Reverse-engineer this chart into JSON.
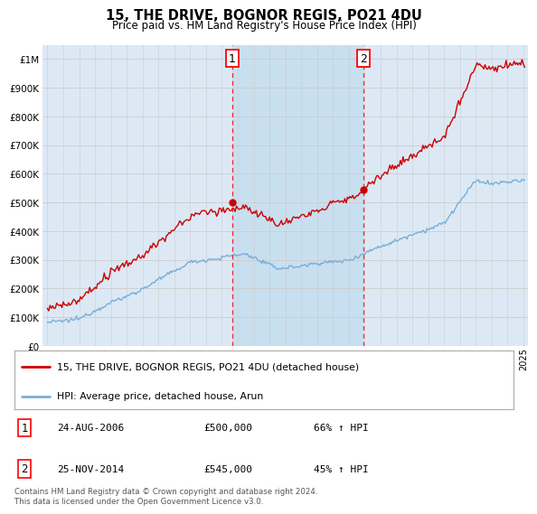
{
  "title": "15, THE DRIVE, BOGNOR REGIS, PO21 4DU",
  "subtitle": "Price paid vs. HM Land Registry's House Price Index (HPI)",
  "hpi_label": "HPI: Average price, detached house, Arun",
  "property_label": "15, THE DRIVE, BOGNOR REGIS, PO21 4DU (detached house)",
  "footnote": "Contains HM Land Registry data © Crown copyright and database right 2024.\nThis data is licensed under the Open Government Licence v3.0.",
  "sale1_date": "24-AUG-2006",
  "sale1_price": "£500,000",
  "sale1_hpi": "66% ↑ HPI",
  "sale1_year": 2006.64,
  "sale2_date": "25-NOV-2014",
  "sale2_price": "£545,000",
  "sale2_hpi": "45% ↑ HPI",
  "sale2_year": 2014.9,
  "sale1_value": 500000,
  "sale2_value": 545000,
  "hpi_color": "#7aaed6",
  "property_color": "#cc0000",
  "background_color": "#dce9f5",
  "highlight_color": "#c8dff0",
  "ylim": [
    0,
    1050000
  ],
  "xlim_start": 1994.7,
  "xlim_end": 2025.3
}
